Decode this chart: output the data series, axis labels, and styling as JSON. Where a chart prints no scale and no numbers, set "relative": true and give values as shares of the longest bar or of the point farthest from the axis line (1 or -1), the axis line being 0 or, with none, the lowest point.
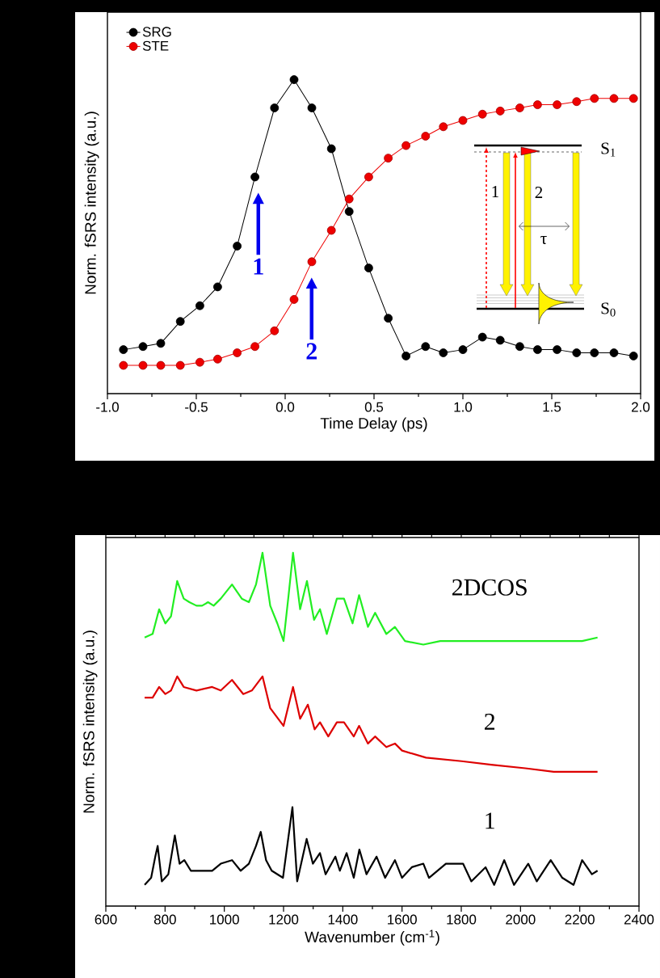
{
  "chart_data": [
    {
      "type": "line",
      "xlabel": "Time Delay (ps)",
      "ylabel": "Norm. fSRS intensity (a.u.)",
      "relative": true,
      "marker": "circle",
      "line_style": "solid",
      "legend": "top left",
      "xlim": [
        -1.0,
        2.0
      ],
      "xticks": [
        {
          "value": -1.0,
          "label": "-1.0"
        },
        {
          "value": -0.5,
          "label": "-0.5"
        },
        {
          "value": 0.0,
          "label": "0.0"
        },
        {
          "value": 0.5,
          "label": "0.5"
        },
        {
          "value": 1.0,
          "label": "1.0"
        },
        {
          "value": 1.5,
          "label": "1.5"
        },
        {
          "value": 2.0,
          "label": "2.0"
        }
      ],
      "x": [
        -0.91,
        -0.8,
        -0.7,
        -0.59,
        -0.48,
        -0.38,
        -0.27,
        -0.17,
        -0.06,
        0.05,
        0.15,
        0.26,
        0.36,
        0.47,
        0.58,
        0.68,
        0.79,
        0.89,
        1.0,
        1.11,
        1.21,
        1.32,
        1.42,
        1.53,
        1.64,
        1.74,
        1.85,
        1.96
      ],
      "series": [
        {
          "name": "SRG",
          "color": "#000000",
          "values": [
            0.14,
            0.15,
            0.16,
            0.23,
            0.28,
            0.34,
            0.47,
            0.69,
            0.91,
            1.0,
            0.91,
            0.78,
            0.58,
            0.4,
            0.24,
            0.12,
            0.15,
            0.13,
            0.14,
            0.18,
            0.17,
            0.15,
            0.14,
            0.14,
            0.13,
            0.13,
            0.13,
            0.12
          ]
        },
        {
          "name": "STE",
          "color": "#ee0000",
          "values": [
            0.09,
            0.09,
            0.09,
            0.09,
            0.1,
            0.11,
            0.13,
            0.15,
            0.2,
            0.3,
            0.42,
            0.52,
            0.62,
            0.69,
            0.75,
            0.79,
            0.82,
            0.85,
            0.87,
            0.89,
            0.9,
            0.91,
            0.92,
            0.92,
            0.93,
            0.94,
            0.94,
            0.94
          ]
        }
      ],
      "annotations": [
        "1",
        "2",
        "S$_{1}$",
        "S$_{0}$",
        "1",
        "2",
        "τ"
      ]
    },
    {
      "type": "line",
      "xlabel": "Wavenumber (cm$^{-1}$)",
      "ylabel": "Norm. fSRS intensity (a.u.)",
      "relative": true,
      "line_style": "solid",
      "xlim": [
        600,
        2400
      ],
      "xticks": [
        600,
        800,
        1000,
        1200,
        1400,
        1600,
        1800,
        2000,
        2200,
        2400
      ],
      "series": [
        {
          "name": "2DCOS",
          "color": "#22ee22",
          "x": [
            731,
            758,
            780,
            801,
            820,
            841,
            863,
            882,
            906,
            925,
            945,
            964,
            988,
            1026,
            1059,
            1083,
            1107,
            1129,
            1155,
            1179,
            1200,
            1217,
            1232,
            1256,
            1279,
            1303,
            1323,
            1346,
            1380,
            1404,
            1433,
            1455,
            1485,
            1509,
            1547,
            1576,
            1610,
            1672,
            1729,
            1801,
            1901,
            2016,
            2112,
            2208,
            2260
          ],
          "values": [
            0.76,
            0.77,
            0.84,
            0.8,
            0.82,
            0.92,
            0.87,
            0.86,
            0.85,
            0.85,
            0.86,
            0.85,
            0.87,
            0.91,
            0.87,
            0.86,
            0.91,
            1.0,
            0.85,
            0.8,
            0.75,
            0.88,
            1.0,
            0.84,
            0.92,
            0.81,
            0.84,
            0.77,
            0.87,
            0.87,
            0.8,
            0.88,
            0.79,
            0.83,
            0.77,
            0.79,
            0.75,
            0.74,
            0.75,
            0.75,
            0.75,
            0.75,
            0.75,
            0.75,
            0.76
          ]
        },
        {
          "name": "2",
          "color": "#dd0000",
          "x": [
            731,
            758,
            780,
            801,
            820,
            841,
            863,
            906,
            959,
            988,
            1026,
            1064,
            1093,
            1129,
            1155,
            1200,
            1232,
            1256,
            1282,
            1305,
            1323,
            1351,
            1380,
            1404,
            1437,
            1455,
            1485,
            1509,
            1547,
            1576,
            1600,
            1681,
            1801,
            1901,
            2016,
            2112,
            2260
          ],
          "values": [
            0.59,
            0.59,
            0.62,
            0.6,
            0.61,
            0.65,
            0.62,
            0.61,
            0.62,
            0.61,
            0.64,
            0.6,
            0.61,
            0.65,
            0.56,
            0.51,
            0.62,
            0.53,
            0.57,
            0.5,
            0.52,
            0.48,
            0.52,
            0.52,
            0.48,
            0.51,
            0.46,
            0.48,
            0.45,
            0.46,
            0.44,
            0.42,
            0.41,
            0.4,
            0.39,
            0.38,
            0.38
          ]
        },
        {
          "name": "1",
          "color": "#000000",
          "x": [
            731,
            753,
            767,
            775,
            789,
            811,
            833,
            849,
            865,
            887,
            921,
            959,
            988,
            1026,
            1055,
            1083,
            1107,
            1123,
            1141,
            1160,
            1198,
            1230,
            1246,
            1278,
            1299,
            1323,
            1342,
            1375,
            1390,
            1413,
            1437,
            1456,
            1480,
            1514,
            1543,
            1576,
            1600,
            1633,
            1672,
            1691,
            1748,
            1806,
            1834,
            1882,
            1911,
            1945,
            1978,
            2026,
            2055,
            2102,
            2141,
            2179,
            2208,
            2241,
            2260
          ],
          "values": [
            0.06,
            0.08,
            0.14,
            0.17,
            0.07,
            0.09,
            0.2,
            0.12,
            0.13,
            0.1,
            0.1,
            0.1,
            0.12,
            0.13,
            0.1,
            0.12,
            0.17,
            0.21,
            0.13,
            0.1,
            0.08,
            0.28,
            0.07,
            0.19,
            0.12,
            0.15,
            0.09,
            0.14,
            0.1,
            0.15,
            0.08,
            0.16,
            0.09,
            0.14,
            0.08,
            0.13,
            0.08,
            0.11,
            0.12,
            0.08,
            0.12,
            0.12,
            0.07,
            0.11,
            0.06,
            0.13,
            0.06,
            0.12,
            0.07,
            0.13,
            0.08,
            0.06,
            0.13,
            0.09,
            0.1
          ]
        }
      ]
    }
  ]
}
